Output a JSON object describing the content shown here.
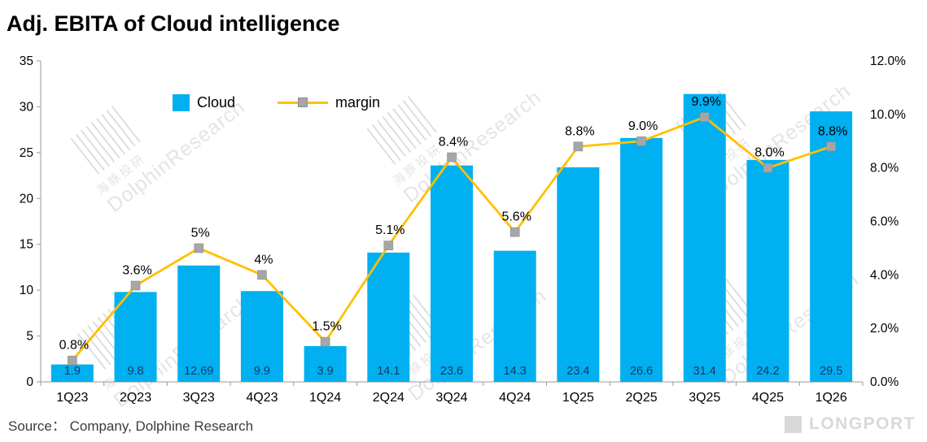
{
  "title": "Adj. EBITA of Cloud intelligence",
  "source": "Source：  Company, Dolphine Research",
  "footer_logo": "LONGPORT",
  "legend": {
    "cloud": "Cloud",
    "margin": "margin"
  },
  "watermark": {
    "en": "DolphinResearch",
    "zh": "海豚投研"
  },
  "colors": {
    "bar": "#00B0F0",
    "line": "#FFC000",
    "marker": "#A6A6A6",
    "bar_label": "#17375E",
    "axis": "#9a9a9a"
  },
  "chart_data": {
    "type": "bar",
    "subtype": "bar-with-line-overlay",
    "title": "Adj. EBITA of Cloud intelligence",
    "xlabel": "",
    "ylabel": "",
    "grid": false,
    "legend_position": "top-left-inside",
    "categories": [
      "1Q23",
      "2Q23",
      "3Q23",
      "4Q23",
      "1Q24",
      "2Q24",
      "3Q24",
      "4Q24",
      "1Q25",
      "2Q25",
      "3Q25",
      "4Q25",
      "1Q26"
    ],
    "series": [
      {
        "name": "Cloud",
        "type": "bar",
        "axis": "left",
        "color": "#00B0F0",
        "label_color": "#17375E",
        "values": [
          1.9,
          9.8,
          12.69,
          9.9,
          3.9,
          14.1,
          23.6,
          14.3,
          23.4,
          26.6,
          31.4,
          24.2,
          29.5
        ],
        "labels": [
          "1.9",
          "9.8",
          "12.69",
          "9.9",
          "3.9",
          "14.1",
          "23.6",
          "14.3",
          "23.4",
          "26.6",
          "31.4",
          "24.2",
          "29.5"
        ]
      },
      {
        "name": "margin",
        "type": "line",
        "axis": "right",
        "color": "#FFC000",
        "marker": "square",
        "marker_color": "#A6A6A6",
        "values": [
          0.8,
          3.6,
          5,
          4,
          1.5,
          5.1,
          8.4,
          5.6,
          8.8,
          9.0,
          9.9,
          8.0,
          8.8
        ],
        "labels": [
          "0.8%",
          "3.6%",
          "5%",
          "4%",
          "1.5%",
          "5.1%",
          "8.4%",
          "5.6%",
          "8.8%",
          "9.0%",
          "9.9%",
          "8.0%",
          "8.8%"
        ]
      }
    ],
    "left_axis": {
      "min": 0,
      "max": 35,
      "step": 5,
      "ticks": [
        "0",
        "5",
        "10",
        "15",
        "20",
        "25",
        "30",
        "35"
      ]
    },
    "right_axis": {
      "min": 0,
      "max": 12,
      "step": 2,
      "ticks": [
        "0.0%",
        "2.0%",
        "4.0%",
        "6.0%",
        "8.0%",
        "10.0%",
        "12.0%"
      ]
    }
  }
}
